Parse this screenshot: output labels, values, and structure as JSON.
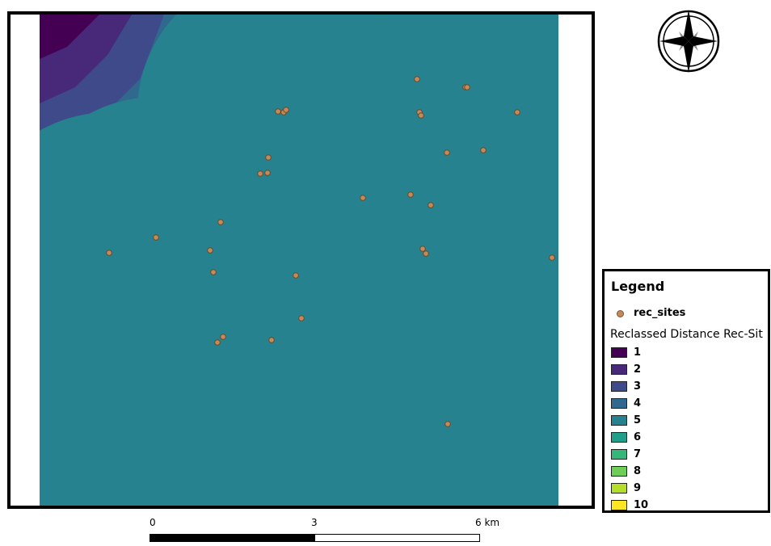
{
  "legend": {
    "title": "Legend",
    "point_layer_label": "rec_sites",
    "point_color": "#c48a5a",
    "raster_title": "Reclassed Distance Rec-Sit",
    "classes": [
      {
        "label": "1",
        "color": "#440154"
      },
      {
        "label": "2",
        "color": "#482878"
      },
      {
        "label": "3",
        "color": "#3e4a89"
      },
      {
        "label": "4",
        "color": "#31688e"
      },
      {
        "label": "5",
        "color": "#26828e"
      },
      {
        "label": "6",
        "color": "#1f9e89"
      },
      {
        "label": "7",
        "color": "#35b779"
      },
      {
        "label": "8",
        "color": "#6ece58"
      },
      {
        "label": "9",
        "color": "#b5de2b"
      },
      {
        "label": "10",
        "color": "#fde725"
      }
    ]
  },
  "scalebar": {
    "labels": [
      "0",
      "3",
      "6 km"
    ]
  },
  "north_arrow": {
    "icon": "compass-rose-icon"
  },
  "map": {
    "background_class_color": "#26828e",
    "rec_sites": [
      {
        "id": 1
      },
      {
        "id": 2
      },
      {
        "id": 3
      },
      {
        "id": 4
      },
      {
        "id": 5
      },
      {
        "id": 6
      },
      {
        "id": 7
      },
      {
        "id": 8
      },
      {
        "id": 9
      },
      {
        "id": 10
      },
      {
        "id": 11
      },
      {
        "id": 12
      },
      {
        "id": 13
      },
      {
        "id": 14
      },
      {
        "id": 15
      },
      {
        "id": 16
      },
      {
        "id": 17
      },
      {
        "id": 18
      },
      {
        "id": 19
      },
      {
        "id": 20
      },
      {
        "id": 21
      },
      {
        "id": 22
      },
      {
        "id": 23
      },
      {
        "id": 24
      },
      {
        "id": 25
      },
      {
        "id": 26
      },
      {
        "id": 27
      },
      {
        "id": 28
      },
      {
        "id": 29
      },
      {
        "id": 30
      },
      {
        "id": 31
      }
    ]
  }
}
